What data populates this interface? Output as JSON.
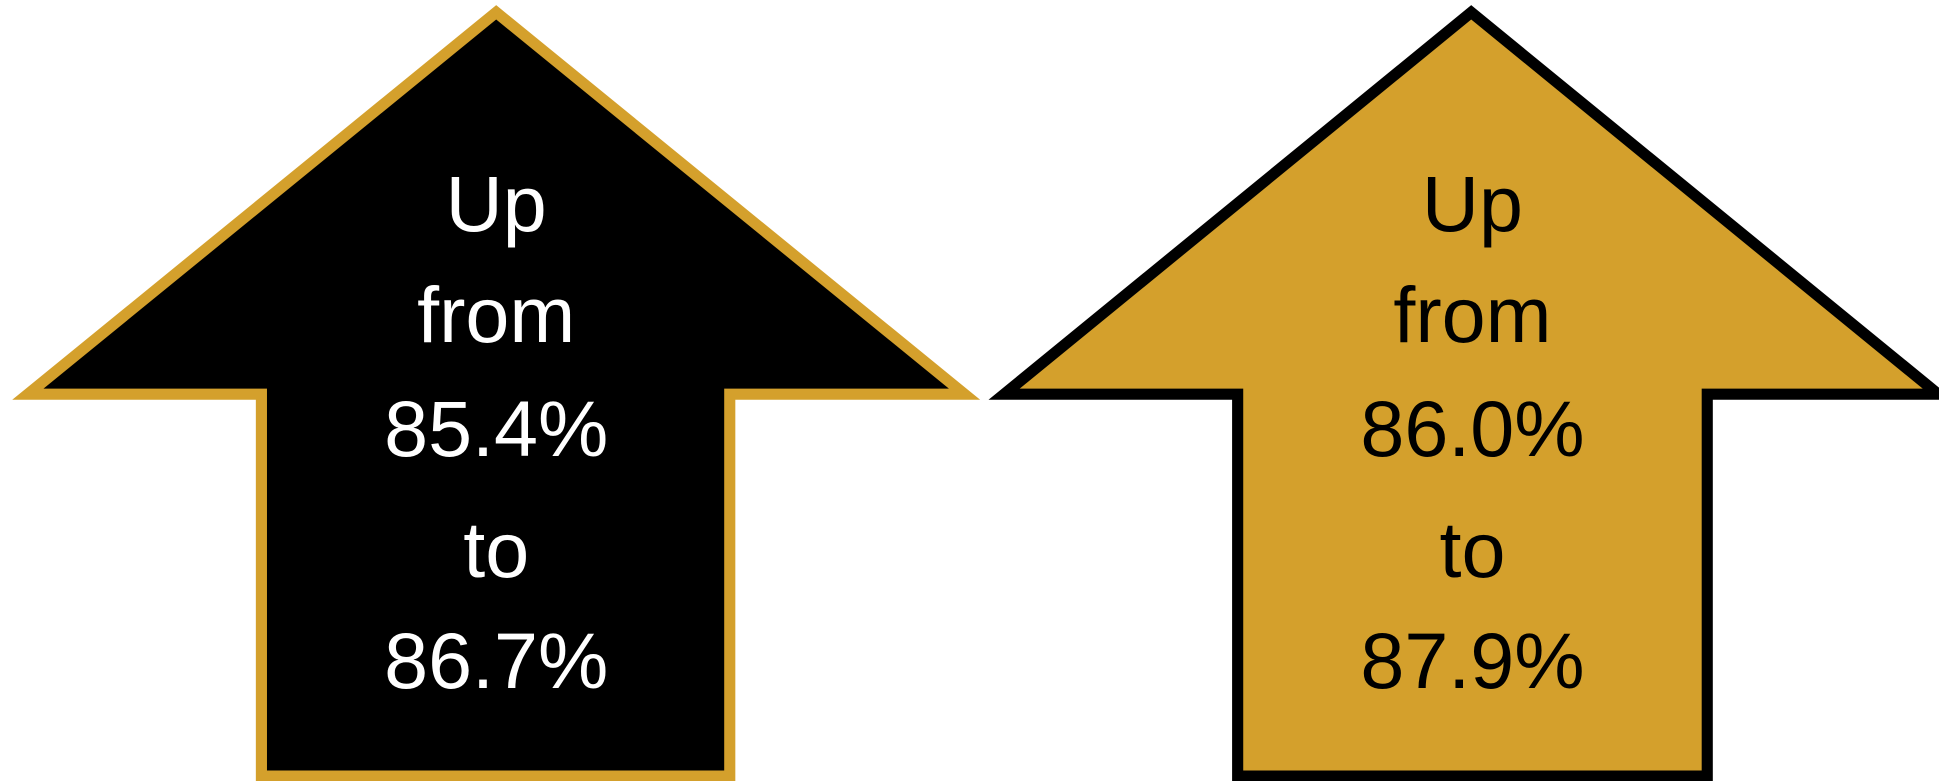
{
  "arrows": [
    {
      "lines": [
        "Up",
        "from",
        "85.4%",
        "to",
        "86.7%"
      ]
    },
    {
      "lines": [
        "Up",
        "from",
        "86.0%",
        "to",
        "87.9%"
      ]
    }
  ]
}
